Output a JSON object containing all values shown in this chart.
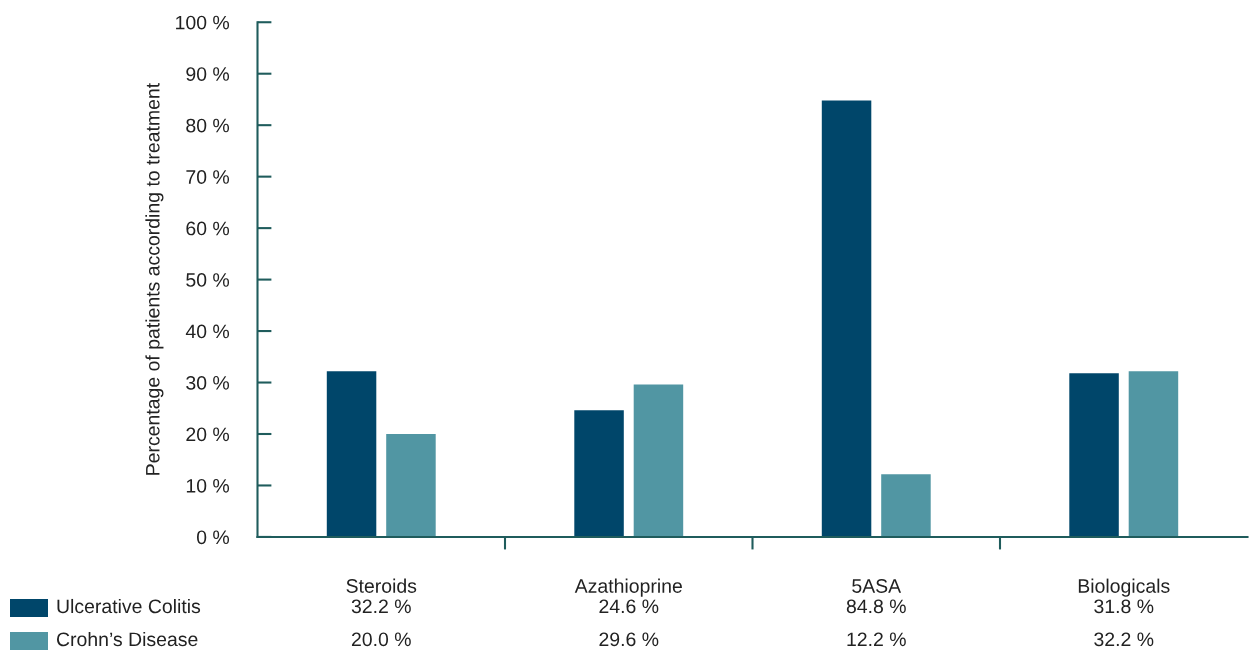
{
  "chart_data": {
    "type": "bar",
    "ylabel": "Percentage of patients according to treatment",
    "categories": [
      "Steroids",
      "Azathioprine",
      "5ASA",
      "Biologicals"
    ],
    "series": [
      {
        "name": "Ulcerative Colitis",
        "color": "#00466a",
        "values": [
          32.2,
          24.6,
          84.8,
          31.8
        ],
        "value_labels": [
          "32.2 %",
          "24.6 %",
          "84.8 %",
          "31.8 %"
        ]
      },
      {
        "name": "Crohn’s Disease",
        "color": "#5196a3",
        "values": [
          20.0,
          29.6,
          12.2,
          32.2
        ],
        "value_labels": [
          "20.0 %",
          "29.6 %",
          "12.2 %",
          "32.2 %"
        ]
      }
    ],
    "ylim": [
      0,
      100
    ],
    "yticks": [
      {
        "value": 0,
        "label": "0 %"
      },
      {
        "value": 10,
        "label": "10 %"
      },
      {
        "value": 20,
        "label": "20 %"
      },
      {
        "value": 30,
        "label": "30 %"
      },
      {
        "value": 40,
        "label": "40 %"
      },
      {
        "value": 50,
        "label": "50 %"
      },
      {
        "value": 60,
        "label": "60 %"
      },
      {
        "value": 70,
        "label": "70 %"
      },
      {
        "value": 80,
        "label": "80 %"
      },
      {
        "value": 90,
        "label": "90 %"
      },
      {
        "value": 100,
        "label": "100 %"
      }
    ],
    "grid": false,
    "legend": "bottom left"
  }
}
